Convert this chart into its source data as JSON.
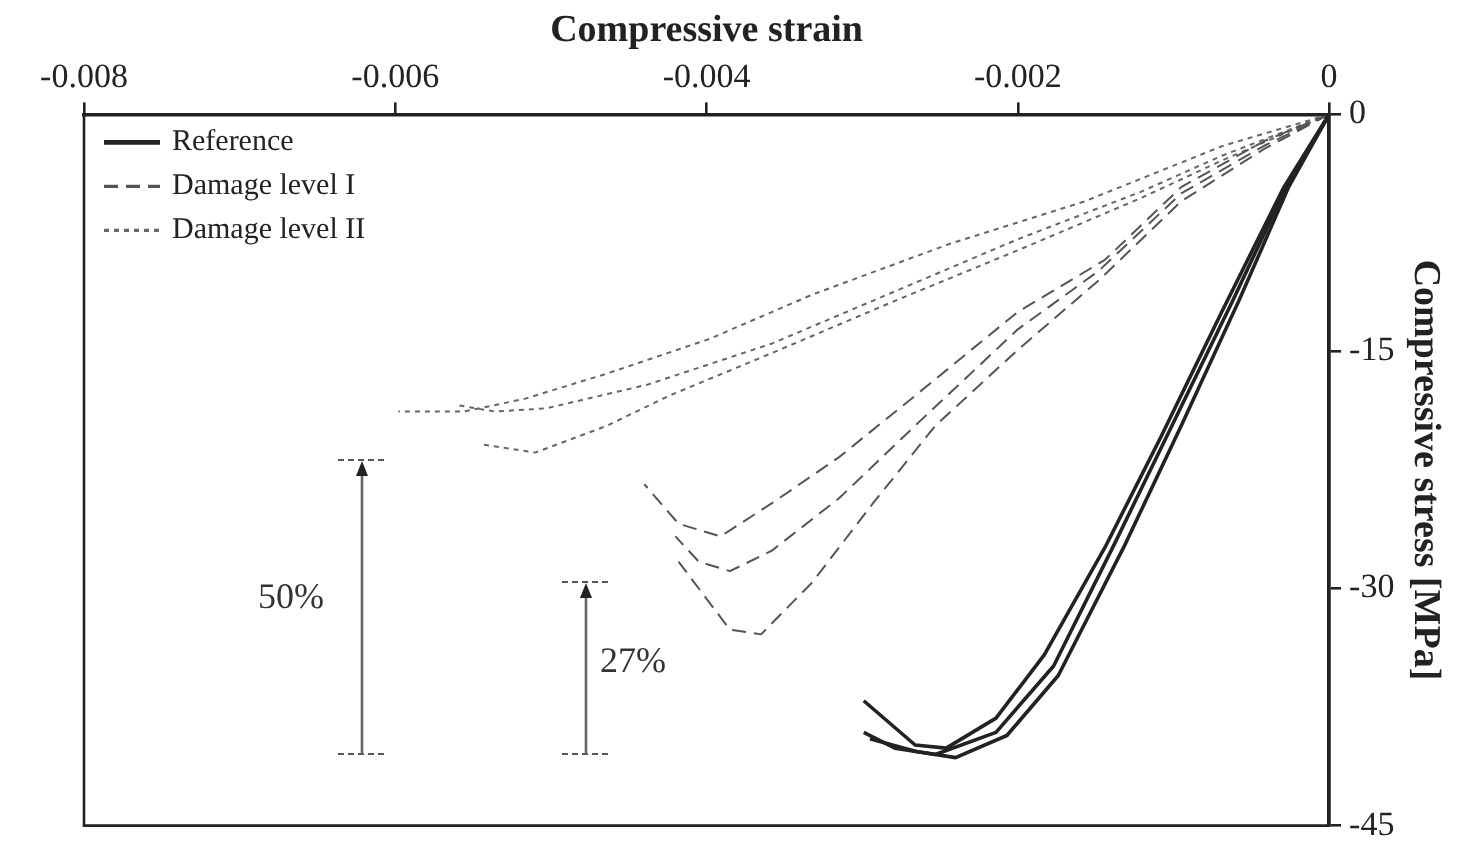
{
  "chart_data": {
    "type": "line",
    "xlabel": "Compressive strain",
    "ylabel": "Compressive stress [MPa]",
    "xlim": [
      -0.008,
      0
    ],
    "xticks": [
      -0.008,
      -0.006,
      -0.004,
      -0.002,
      0
    ],
    "ylim": [
      -45,
      0
    ],
    "yticks": [
      0,
      -15,
      -30,
      -45
    ],
    "legend": "top left",
    "marker": "none",
    "series": [
      {
        "name": "Reference",
        "color": "#222222",
        "line_style": "solid",
        "x": [
          0,
          -0.00029,
          -0.00069,
          -0.00108,
          -0.00144,
          -0.00183,
          -0.00214,
          -0.00246,
          -0.00266,
          -0.00299
        ],
        "values": [
          0,
          -4.6,
          -12.5,
          -20.4,
          -27.4,
          -34.2,
          -38.2,
          -40.1,
          -39.9,
          -37.1
        ]
      },
      {
        "color": "#222222",
        "line_style": "solid",
        "x": [
          0,
          -0.00029,
          -0.00062,
          -0.00101,
          -0.00137,
          -0.00177,
          -0.00214,
          -0.00253,
          -0.00279,
          -0.00299
        ],
        "values": [
          0,
          -4.9,
          -11.8,
          -19.7,
          -27.0,
          -34.9,
          -39.1,
          -40.5,
          -40.1,
          -39.1
        ]
      },
      {
        "color": "#222222",
        "line_style": "solid",
        "x": [
          0,
          -0.00026,
          -0.00058,
          -0.00095,
          -0.00132,
          -0.00174,
          -0.00207,
          -0.0024,
          -0.00266,
          -0.00295
        ],
        "values": [
          0,
          -4.6,
          -11.8,
          -19.7,
          -27.4,
          -35.5,
          -39.3,
          -40.7,
          -40.3,
          -39.5
        ]
      },
      {
        "name": "Damage level I",
        "color": "#555555",
        "line_style": "dashed",
        "x": [
          0,
          -0.00042,
          -0.00095,
          -0.00144,
          -0.002,
          -0.00266,
          -0.00315,
          -0.00358,
          -0.00391,
          -0.00418,
          -0.0044
        ],
        "values": [
          0,
          -1.7,
          -4.6,
          -9.2,
          -12.5,
          -17.8,
          -21.7,
          -24.6,
          -26.7,
          -25.9,
          -23.4
        ]
      },
      {
        "color": "#555555",
        "line_style": "dashed",
        "x": [
          0,
          -0.00042,
          -0.00095,
          -0.00148,
          -0.002,
          -0.00266,
          -0.00315,
          -0.00358,
          -0.00385,
          -0.00405,
          -0.0042
        ],
        "values": [
          0,
          -2.0,
          -5.0,
          -9.9,
          -13.6,
          -19.7,
          -24.3,
          -27.6,
          -28.9,
          -28.3,
          -26.7
        ]
      },
      {
        "color": "#555555",
        "line_style": "dashed",
        "x": [
          0,
          -0.00042,
          -0.00095,
          -0.00148,
          -0.002,
          -0.00253,
          -0.00293,
          -0.00332,
          -0.00365,
          -0.00385,
          -0.00418
        ],
        "values": [
          0,
          -2.2,
          -5.5,
          -10.5,
          -14.9,
          -19.7,
          -24.6,
          -29.6,
          -32.9,
          -32.6,
          -28.3
        ]
      },
      {
        "name": "Damage level II",
        "color": "#666666",
        "line_style": "dotted",
        "x": [
          0,
          -0.000685,
          -0.00157,
          -0.00244,
          -0.00332,
          -0.00398,
          -0.00464,
          -0.00517,
          -0.00556,
          -0.00598
        ],
        "values": [
          0,
          -2.0,
          -5.5,
          -8.2,
          -11.4,
          -14.2,
          -16.4,
          -18.0,
          -18.8,
          -18.8
        ]
      },
      {
        "color": "#666666",
        "line_style": "dotted",
        "x": [
          0,
          -0.000685,
          -0.00121,
          -0.002,
          -0.00279,
          -0.00358,
          -0.00438,
          -0.00503,
          -0.00536,
          -0.0056
        ],
        "values": [
          0,
          -2.6,
          -4.9,
          -7.9,
          -11.2,
          -14.5,
          -17.1,
          -18.6,
          -18.8,
          -18.4
        ]
      },
      {
        "color": "#666666",
        "line_style": "dotted",
        "x": [
          0,
          -0.000685,
          -0.00121,
          -0.002,
          -0.00279,
          -0.00358,
          -0.00424,
          -0.00464,
          -0.0051,
          -0.00543
        ],
        "values": [
          0,
          -2.9,
          -5.3,
          -8.6,
          -11.8,
          -15.1,
          -17.8,
          -19.7,
          -21.4,
          -20.9
        ]
      }
    ],
    "annotations": [
      "50%",
      "27%"
    ]
  }
}
